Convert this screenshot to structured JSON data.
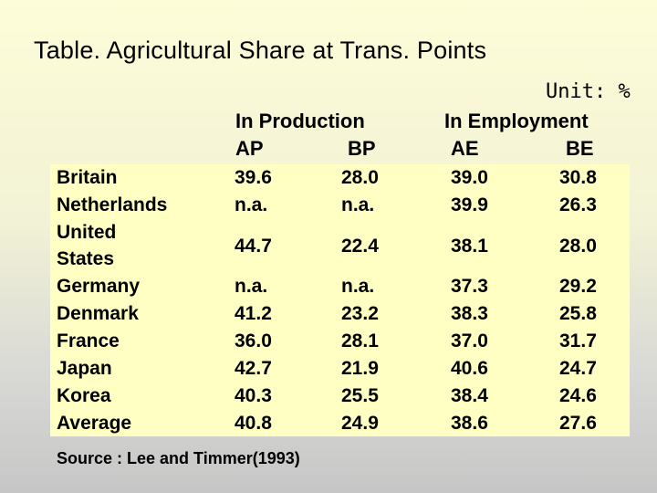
{
  "title": "Table.  Agricultural Share at Trans. Points",
  "unit": "Unit: %",
  "groups": {
    "production": "In Production",
    "employment": "In Employment"
  },
  "columns": [
    "AP",
    "BP",
    "AE",
    "BE"
  ],
  "rows": [
    {
      "country": "Britain",
      "ap": "39.6",
      "bp": "28.0",
      "ae": "39.0",
      "be": "30.8"
    },
    {
      "country": "Netherlands",
      "ap": "n.a.",
      "bp": "n.a.",
      "ae": "39.9",
      "be": "26.3"
    },
    {
      "country": "United States",
      "country_line1": "United",
      "country_line2": "States",
      "ap": "44.7",
      "bp": "22.4",
      "ae": "38.1",
      "be": "28.0"
    },
    {
      "country": "Germany",
      "ap": "n.a.",
      "bp": "n.a.",
      "ae": "37.3",
      "be": "29.2"
    },
    {
      "country": "Denmark",
      "ap": "41.2",
      "bp": "23.2",
      "ae": "38.3",
      "be": "25.8"
    },
    {
      "country": "France",
      "ap": "36.0",
      "bp": "28.1",
      "ae": "37.0",
      "be": "31.7"
    },
    {
      "country": "Japan",
      "ap": "42.7",
      "bp": "21.9",
      "ae": "40.6",
      "be": "24.7"
    },
    {
      "country": "Korea",
      "ap": "40.3",
      "bp": "25.5",
      "ae": "38.4",
      "be": "24.6"
    },
    {
      "country": "Average",
      "ap": "40.8",
      "bp": "24.9",
      "ae": "38.6",
      "be": "27.6"
    }
  ],
  "source": "Source : Lee and Timmer(1993)"
}
